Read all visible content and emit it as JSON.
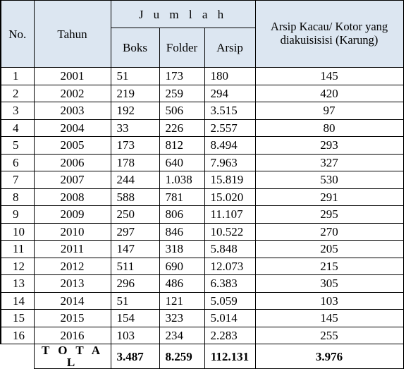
{
  "headers": {
    "no": "No.",
    "tahun": "Tahun",
    "jumlah": "J u m l a h",
    "boks": "Boks",
    "folder": "Folder",
    "arsip": "Arsip",
    "kacau": "Arsip Kacau/ Kotor yang diakuisisisi (Karung)"
  },
  "rows": [
    {
      "no": "1",
      "tahun": "2001",
      "boks": "51",
      "folder": "173",
      "arsip": "180",
      "kacau": "145"
    },
    {
      "no": "2",
      "tahun": "2002",
      "boks": "219",
      "folder": "259",
      "arsip": "294",
      "kacau": "420"
    },
    {
      "no": "3",
      "tahun": "2003",
      "boks": "192",
      "folder": "506",
      "arsip": "3.515",
      "kacau": "97"
    },
    {
      "no": "4",
      "tahun": "2004",
      "boks": "33",
      "folder": "226",
      "arsip": "2.557",
      "kacau": "80"
    },
    {
      "no": "5",
      "tahun": "2005",
      "boks": "173",
      "folder": "812",
      "arsip": "8.494",
      "kacau": "293"
    },
    {
      "no": "6",
      "tahun": "2006",
      "boks": "178",
      "folder": "640",
      "arsip": "7.963",
      "kacau": "327"
    },
    {
      "no": "7",
      "tahun": "2007",
      "boks": "244",
      "folder": "1.038",
      "arsip": "15.819",
      "kacau": "530"
    },
    {
      "no": "8",
      "tahun": "2008",
      "boks": "588",
      "folder": "781",
      "arsip": "15.020",
      "kacau": "291"
    },
    {
      "no": "9",
      "tahun": "2009",
      "boks": "250",
      "folder": "806",
      "arsip": "11.107",
      "kacau": "295"
    },
    {
      "no": "10",
      "tahun": "2010",
      "boks": "297",
      "folder": "846",
      "arsip": "10.522",
      "kacau": "270"
    },
    {
      "no": "11",
      "tahun": "2011",
      "boks": "147",
      "folder": "318",
      "arsip": "5.848",
      "kacau": "205"
    },
    {
      "no": "12",
      "tahun": "2012",
      "boks": "511",
      "folder": "690",
      "arsip": "12.073",
      "kacau": "215"
    },
    {
      "no": "13",
      "tahun": "2013",
      "boks": "296",
      "folder": "486",
      "arsip": "6.383",
      "kacau": "305"
    },
    {
      "no": "14",
      "tahun": "2014",
      "boks": "51",
      "folder": "121",
      "arsip": "5.059",
      "kacau": "103"
    },
    {
      "no": "15",
      "tahun": "2015",
      "boks": "154",
      "folder": "323",
      "arsip": "5.014",
      "kacau": "145"
    },
    {
      "no": "16",
      "tahun": "2016",
      "boks": "103",
      "folder": "234",
      "arsip": "2.283",
      "kacau": "255"
    }
  ],
  "total": {
    "label": "T O T A L",
    "boks": "3.487",
    "folder": "8.259",
    "arsip": "112.131",
    "kacau": "3.976"
  }
}
